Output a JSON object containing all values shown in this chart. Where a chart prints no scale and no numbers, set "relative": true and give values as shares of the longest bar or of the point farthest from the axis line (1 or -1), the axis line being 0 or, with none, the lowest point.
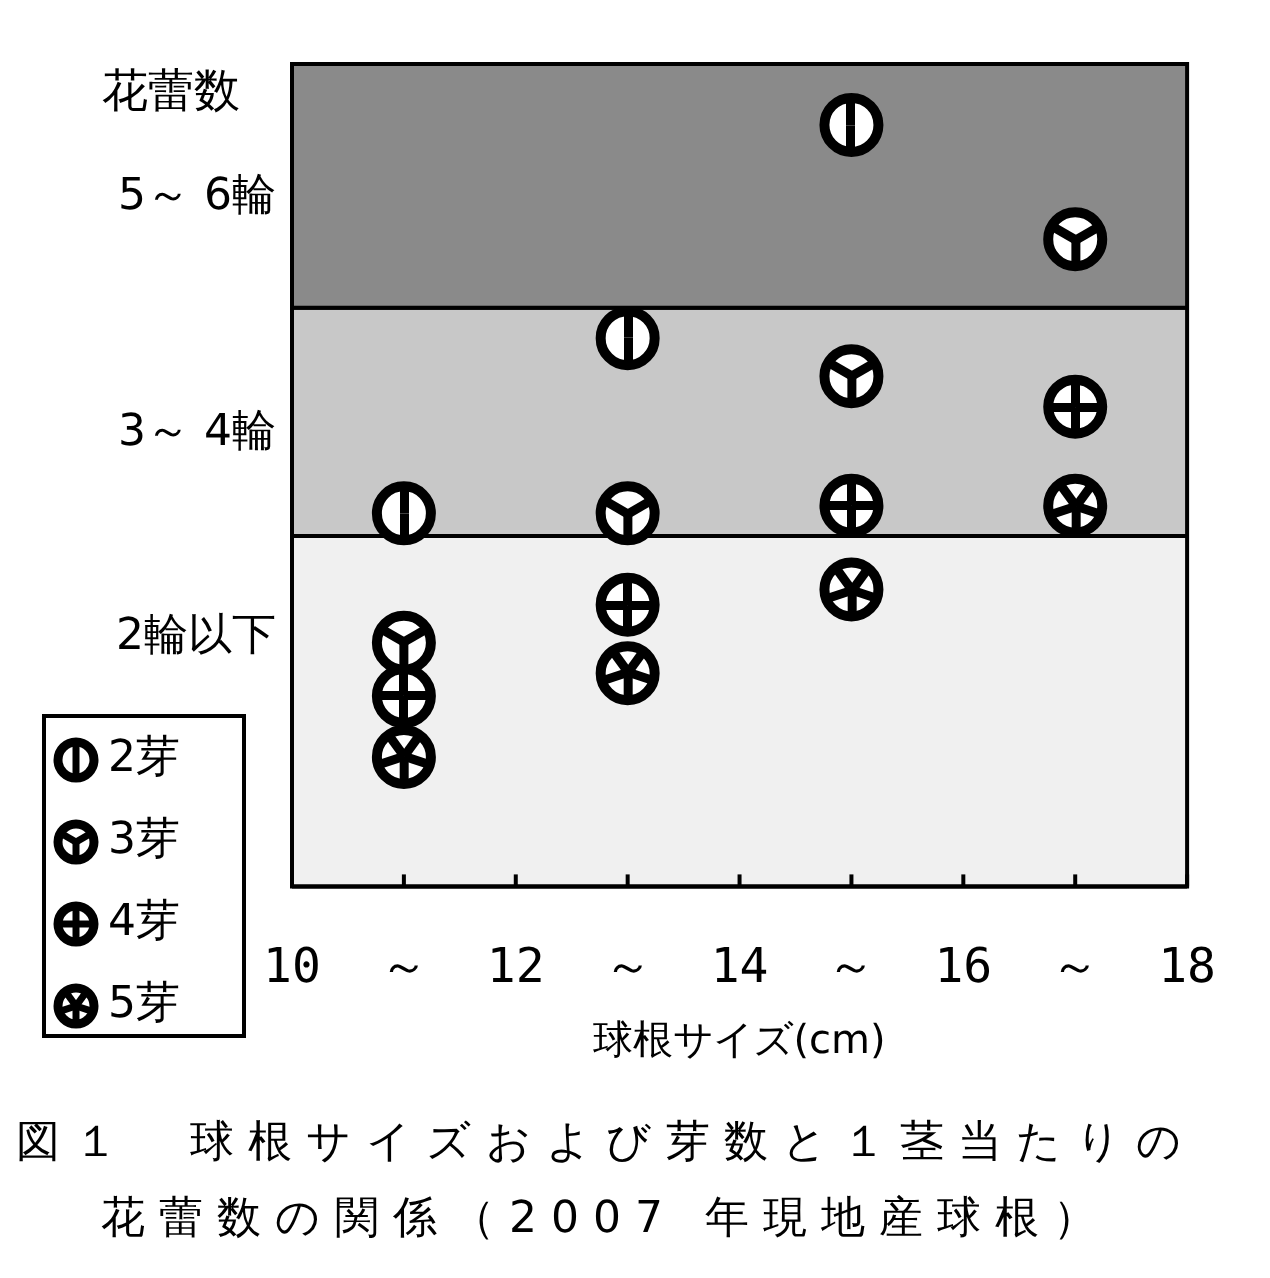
{
  "chart_data": {
    "type": "scatter",
    "ylabel": "花蕾数",
    "xlabel": "球根サイズ(cm)",
    "annotations": [
      "図１　球根サイズおよび芽数と１茎当たりの花蕾数の関係（2007 年現地産球根）"
    ],
    "x": [
      11,
      13,
      15,
      17
    ],
    "xlim": [
      10,
      18
    ],
    "xticks": [
      10,
      {
        "value": 11,
        "label": "～"
      },
      12,
      {
        "value": 13,
        "label": "～"
      },
      14,
      {
        "value": 15,
        "label": "～"
      },
      16,
      {
        "value": 17,
        "label": "～"
      },
      18
    ],
    "relative": true,
    "series": [
      {
        "name": "2芽",
        "color": "#000000",
        "values": [
          0.49,
          0.72,
          1,
          null
        ]
      },
      {
        "name": "3芽",
        "color": "#000000",
        "values": [
          0.32,
          0.49,
          0.67,
          0.85
        ]
      },
      {
        "name": "4芽",
        "color": "#000000",
        "values": [
          0.25,
          0.37,
          0.5,
          0.63
        ]
      },
      {
        "name": "5芽",
        "color": "#000000",
        "values": [
          0.17,
          0.28,
          0.39,
          0.5
        ]
      }
    ],
    "bands": [
      {
        "axis": "y",
        "from": 0,
        "to": 0.46,
        "label": "2輪以下",
        "color": "#f0f0f0"
      },
      {
        "axis": "y",
        "from": 0.46,
        "to": 0.76,
        "label": "3～ 4輪",
        "color": "#c8c8c8"
      },
      {
        "axis": "y",
        "from": 0.76,
        "to": 1.08,
        "label": "5～ 6輪",
        "color": "#8a8a8a"
      }
    ],
    "legend": "bottom left",
    "marker": "circle"
  }
}
